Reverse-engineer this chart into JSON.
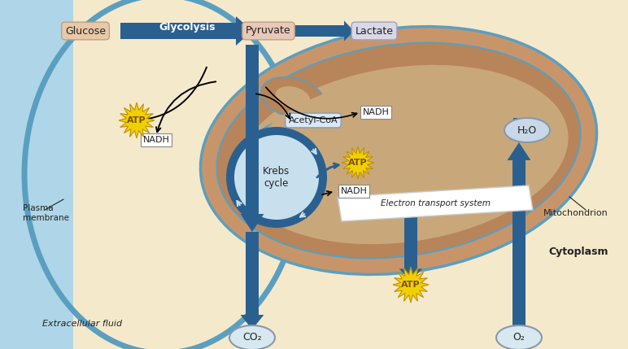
{
  "bg_extracellular": "#aed6e8",
  "bg_cytoplasm": "#f5e9cc",
  "bg_mito_outer": "#c8956a",
  "bg_mito_inner": "#b8845a",
  "bg_matrix": "#c8a87a",
  "bg_krebs": "#c8e0ee",
  "plasma_color": "#5a9fc0",
  "arrow_color": "#2a6090",
  "text_dark": "#222222",
  "atp_yellow": "#f0d000",
  "atp_text": "#7a5000",
  "glucose_fc": "#e8c8a8",
  "pyruvate_fc": "#e8c8b8",
  "lactate_fc": "#d8d8e8",
  "acetyl_fc": "#d8e8f8",
  "nadh_fc": "#ffffff",
  "etc_fc": "#f0f0f0",
  "oval_fc": "#d8e8f0",
  "h2o_fc": "#c8d8e8",
  "labels": {
    "glucose": "Glucose",
    "glycolysis": "Glycolysis",
    "pyruvate": "Pyruvate",
    "lactate": "Lactate",
    "acetyl_coa": "Acetyl-CoA",
    "nadh": "NADH",
    "atp": "ATP",
    "krebs": "Krebs\ncycle",
    "electron_transport": "Electron transport system",
    "co2": "CO₂",
    "o2": "O₂",
    "h2o": "H₂O",
    "plasma_membrane": "Plasma\nmembrane",
    "extracellular": "Extracellular fluid",
    "mitochondrion": "Mitochondrion",
    "cytoplasm": "Cytoplasm"
  }
}
